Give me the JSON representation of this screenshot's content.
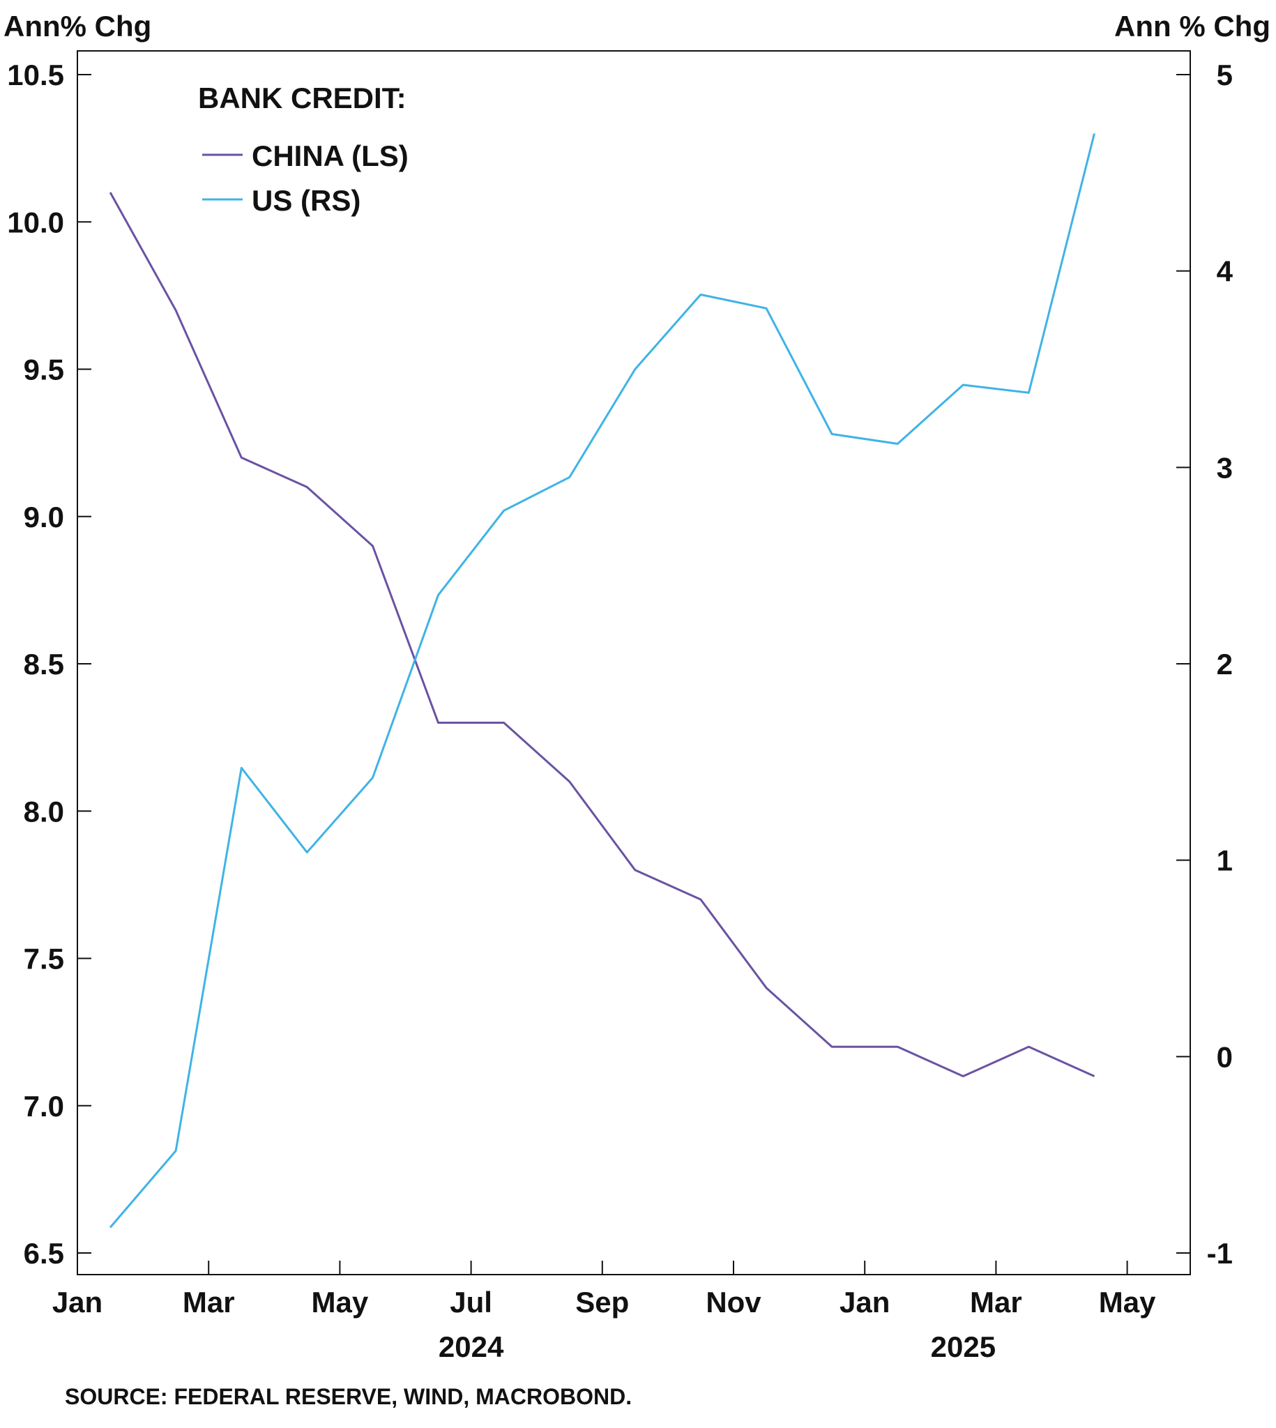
{
  "chart_data": {
    "type": "line",
    "left_axis_title": "Ann% Chg",
    "right_axis_title": "Ann % Chg",
    "legend_title": "BANK CREDIT:",
    "y_left": {
      "lim": [
        6.5,
        10.5
      ],
      "ticks": [
        6.5,
        7.0,
        7.5,
        8.0,
        8.5,
        9.0,
        9.5,
        10.0,
        10.5
      ],
      "tick_labels": [
        "6.5",
        "7.0",
        "7.5",
        "8.0",
        "8.5",
        "9.0",
        "9.5",
        "10.0",
        "10.5"
      ]
    },
    "y_right": {
      "lim": [
        -1,
        5
      ],
      "ticks": [
        -1,
        0,
        1,
        2,
        3,
        4,
        5
      ],
      "tick_labels": [
        "-1",
        "0",
        "1",
        "2",
        "3",
        "4",
        "5"
      ]
    },
    "x_axis": {
      "range": [
        "2024-01",
        "2025-05"
      ],
      "ticks": [
        {
          "label": "Jan",
          "month": 0
        },
        {
          "label": "Mar",
          "month": 2
        },
        {
          "label": "May",
          "month": 4
        },
        {
          "label": "Jul",
          "month": 6
        },
        {
          "label": "Sep",
          "month": 8
        },
        {
          "label": "Nov",
          "month": 10
        },
        {
          "label": "Jan",
          "month": 12
        },
        {
          "label": "Mar",
          "month": 14
        },
        {
          "label": "May",
          "month": 16
        }
      ],
      "years": [
        {
          "label": "2024",
          "month": 6
        },
        {
          "label": "2025",
          "month": 13.5
        }
      ]
    },
    "x": [
      "2024-01",
      "2024-02",
      "2024-03",
      "2024-04",
      "2024-05",
      "2024-06",
      "2024-07",
      "2024-08",
      "2024-09",
      "2024-10",
      "2024-11",
      "2024-12",
      "2025-01",
      "2025-02",
      "2025-03",
      "2025-04"
    ],
    "series": [
      {
        "name": "CHINA (LS)",
        "axis": "left",
        "color": "#6a52a3",
        "values": [
          10.1,
          9.7,
          9.2,
          9.1,
          8.9,
          8.3,
          8.3,
          8.1,
          7.8,
          7.7,
          7.4,
          7.2,
          7.2,
          7.1,
          7.2,
          7.1
        ]
      },
      {
        "name": "US (RS)",
        "axis": "right",
        "color": "#3fb3e6",
        "values": [
          -0.87,
          -0.48,
          1.47,
          1.04,
          1.42,
          2.35,
          2.78,
          2.95,
          3.5,
          3.88,
          3.81,
          3.17,
          3.12,
          3.42,
          3.38,
          4.7
        ]
      }
    ],
    "source": "SOURCE: FEDERAL RESERVE, WIND, MACROBOND."
  }
}
